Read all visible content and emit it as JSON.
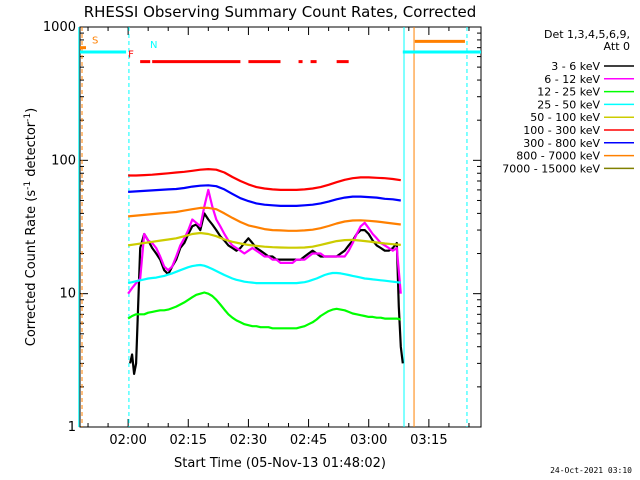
{
  "chart_data": {
    "type": "line",
    "title": "RHESSI Observing Summary Count Rates, Corrected",
    "xlabel": "Start Time (05-Nov-13 01:48:02)",
    "ylabel": "Corrected Count Rate (s",
    "ylabel_sup1": "-1",
    "ylabel_mid": " detector",
    "ylabel_sup2": "-1",
    "ylabel_end": ")",
    "y_scale": "log",
    "ylim": [
      1,
      1000
    ],
    "y_ticks": [
      "1",
      "10",
      "100",
      "1000"
    ],
    "xlim_min": [
      108,
      208
    ],
    "x_ticks": [
      {
        "label": "02:00",
        "min": 120
      },
      {
        "label": "02:15",
        "min": 135
      },
      {
        "label": "02:30",
        "min": 150
      },
      {
        "label": "02:45",
        "min": 165
      },
      {
        "label": "03:00",
        "min": 180
      },
      {
        "label": "03:15",
        "min": 195
      }
    ],
    "legend_title": [
      "Det 1,3,4,5,6,9,",
      "Att 0"
    ],
    "legend_position": "right",
    "series": [
      {
        "name": "3 - 6 keV",
        "color": "#000000",
        "x": [
          120.5,
          121,
          121.5,
          122,
          123,
          124,
          125,
          126,
          127,
          128,
          129,
          130,
          131,
          132,
          133,
          134,
          135,
          136,
          137,
          138,
          139,
          140,
          141,
          142,
          143,
          144,
          145,
          146,
          147,
          148,
          149,
          150,
          151,
          152,
          153,
          154,
          155,
          156,
          157,
          158,
          159,
          160,
          161,
          162,
          163,
          164,
          165,
          166,
          167,
          168,
          169,
          170,
          171,
          172,
          173,
          174,
          175,
          176,
          177,
          178,
          179,
          180,
          181,
          182,
          183,
          184,
          185,
          186,
          187,
          187.5,
          188,
          188.5
        ],
        "y": [
          3,
          3.5,
          2.5,
          3,
          22,
          28,
          25,
          22,
          20,
          18,
          15,
          14,
          16,
          18,
          22,
          24,
          28,
          32,
          33,
          30,
          40,
          36,
          33,
          30,
          27,
          25,
          23,
          22,
          21,
          22,
          24,
          26,
          24,
          22,
          21,
          20,
          19,
          19,
          18,
          18,
          18,
          18,
          18,
          18,
          18,
          19,
          20,
          21,
          20,
          19,
          19,
          19,
          19,
          19,
          20,
          21,
          23,
          25,
          28,
          30,
          30,
          28,
          25,
          23,
          22,
          21,
          21,
          22,
          24,
          8,
          4,
          3
        ]
      },
      {
        "name": "6 - 12 keV",
        "color": "#ff00ff",
        "x": [
          120,
          121,
          122,
          123,
          124,
          125,
          126,
          127,
          128,
          129,
          130,
          131,
          132,
          133,
          134,
          135,
          136,
          137,
          138,
          139,
          140,
          141,
          142,
          143,
          144,
          145,
          146,
          147,
          148,
          149,
          150,
          151,
          152,
          153,
          154,
          155,
          156,
          157,
          158,
          159,
          160,
          161,
          162,
          163,
          164,
          165,
          166,
          167,
          168,
          169,
          170,
          171,
          172,
          173,
          174,
          175,
          176,
          177,
          178,
          179,
          180,
          181,
          182,
          183,
          184,
          185,
          186,
          187,
          188
        ],
        "y": [
          10,
          11,
          12,
          13,
          28,
          25,
          24,
          22,
          19,
          16,
          15,
          16,
          19,
          23,
          26,
          30,
          36,
          34,
          32,
          45,
          60,
          45,
          36,
          32,
          28,
          25,
          23,
          22,
          21,
          20,
          21,
          22,
          21,
          20,
          19,
          19,
          18,
          18,
          17,
          17,
          17,
          17,
          18,
          18,
          18,
          19,
          20,
          20,
          20,
          19,
          19,
          19,
          19,
          19,
          19,
          21,
          24,
          28,
          32,
          34,
          31,
          28,
          26,
          24,
          23,
          22,
          21,
          22,
          10
        ]
      },
      {
        "name": "12 - 25 keV",
        "color": "#00ff00",
        "x": [
          120,
          121,
          122,
          123,
          124,
          125,
          126,
          127,
          128,
          129,
          130,
          131,
          132,
          133,
          134,
          135,
          136,
          137,
          138,
          139,
          140,
          141,
          142,
          143,
          144,
          145,
          146,
          147,
          148,
          149,
          150,
          151,
          152,
          153,
          154,
          155,
          156,
          157,
          158,
          159,
          160,
          161,
          162,
          163,
          164,
          165,
          166,
          167,
          168,
          169,
          170,
          171,
          172,
          173,
          174,
          175,
          176,
          177,
          178,
          179,
          180,
          181,
          182,
          183,
          184,
          185,
          186,
          187,
          188
        ],
        "y": [
          6.5,
          6.8,
          7,
          7,
          7,
          7.2,
          7.3,
          7.4,
          7.5,
          7.5,
          7.6,
          7.8,
          8,
          8.3,
          8.6,
          9,
          9.4,
          9.8,
          10,
          10.2,
          10,
          9.6,
          9,
          8.3,
          7.6,
          7,
          6.6,
          6.3,
          6.1,
          5.9,
          5.8,
          5.7,
          5.7,
          5.6,
          5.6,
          5.6,
          5.5,
          5.5,
          5.5,
          5.5,
          5.5,
          5.5,
          5.5,
          5.6,
          5.7,
          5.9,
          6.1,
          6.4,
          6.8,
          7.1,
          7.4,
          7.6,
          7.7,
          7.6,
          7.5,
          7.3,
          7.1,
          7,
          6.9,
          6.8,
          6.7,
          6.7,
          6.6,
          6.6,
          6.5,
          6.5,
          6.5,
          6.5,
          6.4
        ]
      },
      {
        "name": "25 - 50 keV",
        "color": "#00ffff",
        "x": [
          120,
          121,
          122,
          123,
          124,
          125,
          126,
          127,
          128,
          129,
          130,
          131,
          132,
          133,
          134,
          135,
          136,
          137,
          138,
          139,
          140,
          141,
          142,
          143,
          144,
          145,
          146,
          147,
          148,
          149,
          150,
          151,
          152,
          153,
          154,
          155,
          156,
          157,
          158,
          159,
          160,
          161,
          162,
          163,
          164,
          165,
          166,
          167,
          168,
          169,
          170,
          171,
          172,
          173,
          174,
          175,
          176,
          177,
          178,
          179,
          180,
          181,
          182,
          183,
          184,
          185,
          186,
          187,
          188
        ],
        "y": [
          12,
          12.2,
          12.4,
          12.6,
          12.8,
          13,
          13.1,
          13.2,
          13.4,
          13.6,
          13.9,
          14.2,
          14.6,
          15,
          15.4,
          15.8,
          16.1,
          16.3,
          16.4,
          16.2,
          15.8,
          15.3,
          14.8,
          14.3,
          13.8,
          13.4,
          13,
          12.7,
          12.5,
          12.3,
          12.2,
          12.1,
          12,
          12,
          12,
          12,
          12,
          12,
          12,
          12,
          12,
          12,
          12,
          12.1,
          12.2,
          12.4,
          12.7,
          13,
          13.4,
          13.8,
          14.1,
          14.3,
          14.3,
          14.2,
          14,
          13.8,
          13.6,
          13.4,
          13.2,
          13,
          12.9,
          12.8,
          12.7,
          12.6,
          12.5,
          12.4,
          12.3,
          12.2,
          12.1
        ]
      },
      {
        "name": "50 - 100 keV",
        "color": "#cccc00",
        "x": [
          120,
          122,
          124,
          126,
          128,
          130,
          132,
          134,
          136,
          138,
          140,
          142,
          144,
          146,
          148,
          150,
          152,
          154,
          156,
          158,
          160,
          162,
          164,
          166,
          168,
          170,
          172,
          174,
          176,
          178,
          180,
          182,
          184,
          186,
          188
        ],
        "y": [
          23,
          23.5,
          24,
          24.5,
          25,
          25.5,
          26,
          27,
          28,
          28.5,
          28,
          27,
          25.5,
          24.5,
          23.8,
          23.2,
          22.8,
          22.5,
          22.3,
          22.2,
          22.1,
          22.1,
          22.2,
          22.5,
          23.2,
          24,
          24.8,
          25.2,
          25.3,
          25,
          24.6,
          24.2,
          23.8,
          23.5,
          23.2
        ]
      },
      {
        "name": "100 - 300 keV",
        "color": "#ff0000",
        "x": [
          120,
          122,
          124,
          126,
          128,
          130,
          132,
          134,
          136,
          138,
          140,
          142,
          144,
          146,
          148,
          150,
          152,
          154,
          156,
          158,
          160,
          162,
          164,
          166,
          168,
          170,
          172,
          174,
          176,
          178,
          180,
          182,
          184,
          186,
          188
        ],
        "y": [
          77,
          77,
          77.5,
          78,
          79,
          80,
          81,
          82,
          83.5,
          85,
          86,
          85,
          81,
          75,
          70,
          66,
          63,
          61.5,
          60.5,
          60,
          60,
          60,
          60.5,
          61.5,
          63,
          65.5,
          68.5,
          71.5,
          73.5,
          74.5,
          74.5,
          74,
          73.5,
          72.5,
          71
        ]
      },
      {
        "name": "300 - 800 keV",
        "color": "#0000ff",
        "x": [
          120,
          122,
          124,
          126,
          128,
          130,
          132,
          134,
          136,
          138,
          140,
          142,
          144,
          146,
          148,
          150,
          152,
          154,
          156,
          158,
          160,
          162,
          164,
          166,
          168,
          170,
          172,
          174,
          176,
          178,
          180,
          182,
          184,
          186,
          188
        ],
        "y": [
          58,
          58.5,
          59,
          59.5,
          60,
          60.5,
          61,
          62,
          63.5,
          64.5,
          65,
          64,
          60.5,
          56,
          52,
          49.5,
          47.5,
          46.5,
          46,
          45.5,
          45.5,
          45.5,
          46,
          46.5,
          47.5,
          49,
          51,
          52.5,
          53.5,
          53.5,
          53,
          52.5,
          51.5,
          51,
          50
        ]
      },
      {
        "name": "800 - 7000 keV",
        "color": "#ff8000",
        "x": [
          120,
          122,
          124,
          126,
          128,
          130,
          132,
          134,
          136,
          138,
          140,
          142,
          144,
          146,
          148,
          150,
          152,
          154,
          156,
          158,
          160,
          162,
          164,
          166,
          168,
          170,
          172,
          174,
          176,
          178,
          180,
          182,
          184,
          186,
          188
        ],
        "y": [
          38,
          38.5,
          39,
          39.5,
          40,
          40.5,
          41,
          42,
          43,
          44,
          44,
          43,
          40,
          37,
          34.5,
          32.5,
          31.5,
          30.5,
          30,
          29.8,
          29.6,
          29.6,
          29.8,
          30.2,
          31,
          32.2,
          33.6,
          34.8,
          35.4,
          35.5,
          35.2,
          34.8,
          34.2,
          33.6,
          33
        ]
      },
      {
        "name": "7000 - 15000 keV",
        "color": "#808000",
        "x": [],
        "y": []
      }
    ],
    "flags": {
      "saa": {
        "label": "S",
        "color": "#ff8000",
        "level": 700,
        "segments": [
          [
            108,
            109.5
          ]
        ]
      },
      "night": {
        "label": "N",
        "color": "#00ffff",
        "level": 650,
        "segments": [
          [
            108,
            119.5
          ],
          [
            188.5,
            208
          ]
        ]
      },
      "flare": {
        "label": "F",
        "color": "#ff0000",
        "level": 550,
        "segments": [
          [
            123,
            125.5
          ],
          [
            126,
            148
          ],
          [
            150,
            158
          ],
          [
            162.5,
            163.5
          ],
          [
            165.5,
            167
          ],
          [
            172,
            175
          ]
        ]
      },
      "att_bar": {
        "color": "#ff8000",
        "level": 780,
        "segments": [
          [
            191.5,
            204
          ]
        ]
      }
    },
    "vlines": [
      {
        "min": 108.5,
        "color": "#ff8000",
        "dash": true
      },
      {
        "min": 107.7,
        "color": "#00ffff",
        "dash": false
      },
      {
        "min": 120.2,
        "color": "#00ffff",
        "dash": true
      },
      {
        "min": 188.8,
        "color": "#00ffff",
        "dash": false
      },
      {
        "min": 191.3,
        "color": "#ff8000",
        "dash": false
      },
      {
        "min": 204.5,
        "color": "#00ffff",
        "dash": true
      }
    ]
  },
  "footer_date": "24-Oct-2021 03:10"
}
